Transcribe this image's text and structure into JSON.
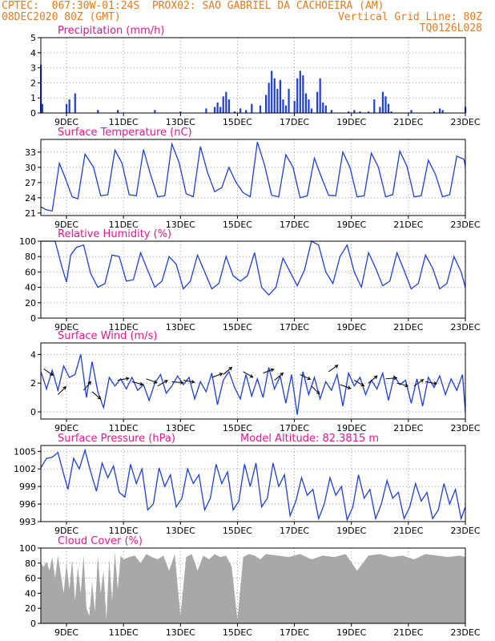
{
  "header": {
    "line1_left": "CPTEC:  067:30W-01:24S  PROX02: SAO GABRIEL DA CACHOEIRA (AM)",
    "line2_left": "08DEC2020 80Z (GMT)",
    "line2_right": "Vertical Grid Line: 80Z",
    "line3_right": "TQ0126L028",
    "accent_color": "#e87a1e",
    "title_color": "#e0198c",
    "series_color": "#1f3fd6",
    "cloud_color": "#a8a8a8"
  },
  "x_axis": {
    "tick_labels": [
      "9DEC",
      "11DEC",
      "13DEC",
      "15DEC",
      "17DEC",
      "19DEC",
      "21DEC",
      "23DEC"
    ],
    "tick_days": [
      9,
      11,
      13,
      15,
      17,
      19,
      21,
      23
    ],
    "range_days": [
      8.1,
      23
    ]
  },
  "chart_data": [
    {
      "type": "bar",
      "title": "Precipitation (mm/h)",
      "ylim": [
        0,
        5
      ],
      "yticks": [
        0,
        1,
        2,
        3,
        4,
        5
      ],
      "ytick_labels": [
        "0",
        "1",
        "2",
        "3",
        "4",
        "5"
      ],
      "x": [
        8.1,
        8.15,
        9.0,
        9.1,
        9.3,
        10.1,
        10.8,
        12.1,
        13.0,
        13.9,
        14.2,
        14.3,
        14.4,
        14.5,
        14.6,
        14.7,
        14.9,
        15.1,
        15.3,
        15.5,
        15.8,
        16.0,
        16.1,
        16.2,
        16.3,
        16.4,
        16.5,
        16.6,
        16.7,
        16.8,
        17.0,
        17.1,
        17.2,
        17.3,
        17.4,
        17.5,
        17.6,
        17.8,
        17.9,
        18.0,
        18.1,
        18.3,
        18.9,
        19.1,
        19.3,
        19.6,
        19.8,
        20.0,
        20.1,
        20.2,
        20.3,
        20.4,
        21.1,
        21.9,
        22.1,
        22.2,
        23.0
      ],
      "values": [
        3.2,
        0.6,
        0.6,
        0.9,
        1.3,
        0.2,
        0.2,
        0.2,
        0.1,
        0.3,
        0.4,
        0.7,
        0.4,
        1.1,
        1.4,
        0.9,
        0.1,
        0.3,
        0.2,
        0.6,
        0.5,
        1.2,
        2.0,
        2.8,
        2.3,
        1.6,
        2.2,
        0.9,
        0.5,
        1.6,
        0.8,
        2.3,
        2.8,
        2.5,
        1.3,
        0.9,
        0.3,
        1.4,
        2.3,
        0.7,
        0.5,
        0.2,
        0.1,
        0.2,
        0.1,
        0.1,
        0.9,
        0.4,
        1.4,
        1.1,
        0.6,
        0.1,
        0.2,
        0.1,
        0.3,
        0.2,
        0.4
      ]
    },
    {
      "type": "line",
      "title": "Surface Temperature (nC)",
      "ylim": [
        20.5,
        35.5
      ],
      "yticks": [
        21,
        24,
        27,
        30,
        33
      ],
      "ytick_labels": [
        "21",
        "24",
        "27",
        "30",
        "33"
      ],
      "x": [
        8.1,
        8.3,
        8.5,
        8.75,
        8.95,
        9.2,
        9.4,
        9.65,
        9.95,
        10.2,
        10.45,
        10.7,
        10.95,
        11.2,
        11.45,
        11.7,
        11.95,
        12.2,
        12.45,
        12.7,
        12.95,
        13.2,
        13.45,
        13.7,
        13.95,
        14.2,
        14.45,
        14.7,
        14.95,
        15.2,
        15.45,
        15.7,
        15.95,
        16.2,
        16.45,
        16.7,
        16.95,
        17.2,
        17.45,
        17.7,
        17.95,
        18.2,
        18.45,
        18.7,
        18.95,
        19.2,
        19.45,
        19.7,
        19.95,
        20.2,
        20.45,
        20.7,
        20.95,
        21.2,
        21.45,
        21.7,
        21.95,
        22.2,
        22.45,
        22.7,
        22.95,
        23.0
      ],
      "values": [
        22.2,
        21.6,
        21.4,
        30.8,
        28.0,
        24.2,
        23.8,
        32.6,
        30.0,
        24.4,
        24.6,
        33.4,
        30.8,
        24.6,
        24.4,
        33.5,
        28.6,
        24.2,
        24.4,
        34.6,
        31.0,
        24.8,
        24.2,
        34.1,
        29.0,
        25.2,
        26.0,
        30.0,
        27.0,
        25.0,
        24.2,
        35.0,
        30.5,
        24.5,
        24.2,
        32.5,
        30.0,
        24.0,
        24.4,
        31.8,
        28.0,
        24.5,
        24.4,
        33.0,
        30.0,
        24.2,
        24.4,
        32.8,
        30.0,
        24.2,
        24.6,
        33.2,
        30.2,
        24.2,
        24.4,
        31.4,
        28.6,
        24.2,
        24.6,
        32.2,
        31.6,
        30.2
      ]
    },
    {
      "type": "line",
      "title": "Relative Humidity (%)",
      "ylim": [
        0,
        100
      ],
      "yticks": [
        0,
        20,
        40,
        60,
        80,
        100
      ],
      "ytick_labels": [
        "0",
        "20",
        "40",
        "60",
        "80",
        "100"
      ],
      "x": [
        8.1,
        8.35,
        8.6,
        8.85,
        9.0,
        9.15,
        9.35,
        9.6,
        9.85,
        10.1,
        10.35,
        10.6,
        10.85,
        11.1,
        11.35,
        11.6,
        11.85,
        12.1,
        12.35,
        12.6,
        12.85,
        13.1,
        13.35,
        13.6,
        13.85,
        14.1,
        14.35,
        14.6,
        14.85,
        15.1,
        15.35,
        15.6,
        15.85,
        16.1,
        16.35,
        16.6,
        16.85,
        17.1,
        17.35,
        17.6,
        17.85,
        18.1,
        18.35,
        18.6,
        18.85,
        19.1,
        19.35,
        19.6,
        19.85,
        20.1,
        20.35,
        20.6,
        20.85,
        21.1,
        21.35,
        21.6,
        21.85,
        22.1,
        22.35,
        22.6,
        22.85,
        23.0
      ],
      "values": [
        100,
        100,
        100,
        65,
        47,
        82,
        92,
        95,
        58,
        40,
        45,
        82,
        80,
        48,
        50,
        85,
        62,
        40,
        48,
        80,
        70,
        38,
        48,
        82,
        60,
        38,
        45,
        80,
        55,
        48,
        55,
        85,
        40,
        30,
        40,
        78,
        60,
        42,
        62,
        100,
        95,
        60,
        45,
        80,
        95,
        60,
        40,
        85,
        65,
        42,
        48,
        85,
        62,
        38,
        45,
        82,
        65,
        38,
        45,
        80,
        60,
        40
      ]
    },
    {
      "type": "line",
      "title": "Surface Wind (m/s)",
      "ylim": [
        -0.5,
        4.8
      ],
      "yticks": [
        0,
        2,
        4
      ],
      "ytick_labels": [
        "0",
        "2",
        "4"
      ],
      "x": [
        8.1,
        8.3,
        8.5,
        8.7,
        8.9,
        9.1,
        9.3,
        9.5,
        9.7,
        9.9,
        10.1,
        10.3,
        10.5,
        10.7,
        10.9,
        11.1,
        11.3,
        11.5,
        11.7,
        11.9,
        12.1,
        12.3,
        12.5,
        12.7,
        12.9,
        13.1,
        13.3,
        13.5,
        13.7,
        13.9,
        14.1,
        14.3,
        14.5,
        14.7,
        14.9,
        15.1,
        15.3,
        15.5,
        15.7,
        15.9,
        16.1,
        16.3,
        16.5,
        16.7,
        16.9,
        17.1,
        17.3,
        17.5,
        17.7,
        17.9,
        18.1,
        18.3,
        18.5,
        18.7,
        18.9,
        19.1,
        19.3,
        19.5,
        19.7,
        19.9,
        20.1,
        20.3,
        20.5,
        20.7,
        20.9,
        21.1,
        21.3,
        21.5,
        21.7,
        21.9,
        22.1,
        22.3,
        22.5,
        22.7,
        22.9,
        23.0
      ],
      "values": [
        2.8,
        1.6,
        2.9,
        1.5,
        3.2,
        2.4,
        2.6,
        4.0,
        1.0,
        3.5,
        1.4,
        0.3,
        2.4,
        1.8,
        2.3,
        1.6,
        2.4,
        1.5,
        1.9,
        0.8,
        2.0,
        2.6,
        1.3,
        1.8,
        2.5,
        1.9,
        2.4,
        0.9,
        2.1,
        1.4,
        2.7,
        0.5,
        2.2,
        2.8,
        1.7,
        0.9,
        2.6,
        1.1,
        2.3,
        1.0,
        3.1,
        1.6,
        2.5,
        0.6,
        2.6,
        -0.2,
        2.8,
        1.2,
        2.4,
        0.9,
        2.1,
        1.5,
        2.6,
        0.4,
        2.7,
        1.8,
        2.4,
        1.2,
        2.2,
        1.6,
        2.7,
        0.8,
        2.5,
        1.9,
        2.2,
        0.6,
        2.3,
        0.4,
        2.4,
        1.7,
        2.5,
        1.2,
        2.3,
        1.5,
        2.6,
        0.0
      ]
    },
    {
      "type": "line",
      "title": "Surface Pressure (hPa)",
      "annotation": "Model Altitude: 82.3815 m",
      "ylim": [
        993,
        1006
      ],
      "yticks": [
        993,
        996,
        999,
        1002,
        1005
      ],
      "ytick_labels": [
        "993",
        "996",
        "999",
        "1002",
        "1005"
      ],
      "x": [
        8.1,
        8.3,
        8.5,
        8.7,
        8.85,
        9.05,
        9.25,
        9.45,
        9.65,
        9.85,
        10.05,
        10.25,
        10.45,
        10.65,
        10.85,
        11.05,
        11.25,
        11.45,
        11.65,
        11.85,
        12.05,
        12.25,
        12.45,
        12.65,
        12.85,
        13.05,
        13.25,
        13.45,
        13.65,
        13.85,
        14.05,
        14.25,
        14.45,
        14.65,
        14.85,
        15.05,
        15.25,
        15.45,
        15.65,
        15.85,
        16.05,
        16.25,
        16.45,
        16.65,
        16.85,
        17.05,
        17.25,
        17.45,
        17.65,
        17.85,
        18.05,
        18.25,
        18.45,
        18.65,
        18.85,
        19.05,
        19.25,
        19.45,
        19.65,
        19.85,
        20.05,
        20.25,
        20.45,
        20.65,
        20.85,
        21.05,
        21.25,
        21.45,
        21.65,
        21.85,
        22.05,
        22.25,
        22.45,
        22.65,
        22.85,
        23.0
      ],
      "values": [
        1002.2,
        1003.8,
        1004.0,
        1004.8,
        1002.0,
        998.5,
        1003.8,
        1002.0,
        1005.2,
        1001.5,
        998.2,
        1003.0,
        1000.5,
        1002.5,
        998.0,
        997.2,
        1002.8,
        999.5,
        1002.0,
        995.0,
        996.0,
        1002.2,
        999.0,
        1001.0,
        995.5,
        997.0,
        1002.0,
        999.5,
        1001.0,
        995.0,
        997.0,
        1002.8,
        999.5,
        1001.5,
        995.0,
        996.5,
        1002.8,
        999.0,
        1003.0,
        995.5,
        997.0,
        1003.0,
        999.0,
        1001.0,
        994.0,
        996.5,
        1000.5,
        997.5,
        998.5,
        993.5,
        996.0,
        1000.5,
        997.5,
        999.0,
        993.3,
        995.5,
        1001.0,
        997.0,
        998.5,
        993.5,
        996.0,
        1000.0,
        997.0,
        998.0,
        993.5,
        995.5,
        999.5,
        996.5,
        998.0,
        993.5,
        995.0,
        999.5,
        996.0,
        998.5,
        993.5,
        995.5
      ]
    },
    {
      "type": "area",
      "title": "Cloud Cover (%)",
      "ylim": [
        0,
        100
      ],
      "yticks": [
        0,
        20,
        40,
        60,
        80,
        100
      ],
      "ytick_labels": [
        "0",
        "20",
        "40",
        "60",
        "80",
        "100"
      ],
      "x": [
        8.1,
        8.2,
        8.3,
        8.4,
        8.5,
        8.6,
        8.7,
        8.8,
        8.9,
        9.0,
        9.1,
        9.2,
        9.3,
        9.4,
        9.5,
        9.6,
        9.7,
        9.8,
        9.9,
        10.0,
        10.1,
        10.2,
        10.3,
        10.4,
        10.5,
        10.6,
        10.7,
        10.8,
        10.9,
        11.0,
        11.2,
        11.4,
        11.6,
        11.8,
        12.0,
        12.2,
        12.4,
        12.6,
        12.8,
        13.0,
        13.2,
        13.4,
        13.6,
        13.8,
        14.0,
        14.2,
        14.4,
        14.6,
        14.8,
        15.0,
        15.2,
        15.4,
        15.6,
        15.8,
        16.0,
        16.4,
        16.8,
        17.2,
        17.6,
        18.0,
        18.4,
        18.8,
        19.2,
        19.6,
        20.0,
        20.4,
        20.8,
        21.2,
        21.6,
        22.0,
        22.4,
        22.8,
        23.0
      ],
      "values": [
        80,
        75,
        82,
        70,
        88,
        60,
        90,
        65,
        40,
        80,
        45,
        85,
        30,
        75,
        40,
        90,
        20,
        10,
        55,
        15,
        90,
        40,
        70,
        5,
        85,
        30,
        95,
        45,
        90,
        85,
        88,
        90,
        80,
        92,
        88,
        85,
        90,
        70,
        92,
        10,
        88,
        92,
        70,
        90,
        85,
        92,
        88,
        90,
        75,
        5,
        88,
        92,
        90,
        85,
        92,
        90,
        88,
        92,
        85,
        90,
        88,
        92,
        70,
        90,
        92,
        88,
        90,
        85,
        92,
        90,
        88,
        90,
        88
      ]
    }
  ]
}
